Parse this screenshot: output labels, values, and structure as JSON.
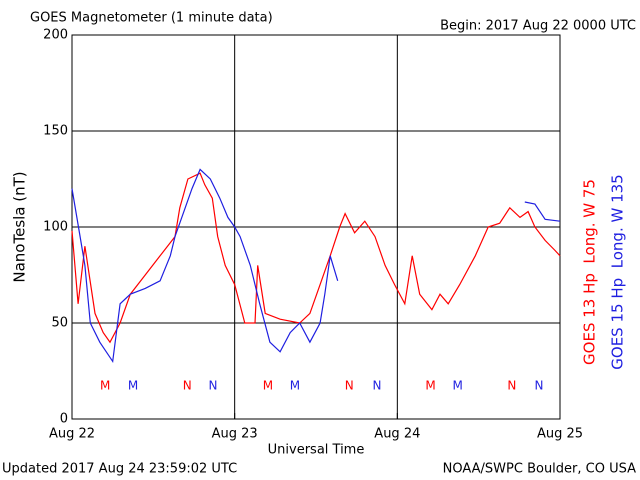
{
  "chart_data": {
    "type": "line",
    "title": "GOES Magnetometer (1 minute data)",
    "subtitle": "Begin:  2017 Aug 22 0000 UTC",
    "y_label": "NanoTesla (nT)",
    "x_label": "Universal Time",
    "footer_left": "Updated 2017 Aug 24 23:59:02 UTC",
    "footer_right": "NOAA/SWPC Boulder, CO USA",
    "xlim": [
      0,
      72
    ],
    "xticks": [
      {
        "value": 0,
        "label": "Aug 22"
      },
      {
        "value": 24,
        "label": "Aug 23"
      },
      {
        "value": 48,
        "label": "Aug 24"
      },
      {
        "value": 72,
        "label": "Aug 25"
      }
    ],
    "ylim": [
      0,
      200
    ],
    "yticks": [
      0,
      50,
      100,
      150,
      200
    ],
    "grid": true,
    "series": [
      {
        "name": "GOES 13 Hp  Long. W 75",
        "color": "#ff0000",
        "x": [
          0,
          0.9,
          1.9,
          3.4,
          4.6,
          5.6,
          7.1,
          8.6,
          10.8,
          13.0,
          15.2,
          15.9,
          17.1,
          18.9,
          19.6,
          20.7,
          21.5,
          22.6,
          24.0,
          25.5,
          27.0,
          27.4,
          28.5,
          30.7,
          33.6,
          35.1,
          36.6,
          38.1,
          39.5,
          40.3,
          41.7,
          43.2,
          44.7,
          46.2,
          47.6,
          49.1,
          50.2,
          51.3,
          53.1,
          54.3,
          55.5,
          57.2,
          59.5,
          61.4,
          63.1,
          64.6,
          66.1,
          67.3,
          68.3,
          69.8,
          71.2,
          72
        ],
        "values": [
          98,
          60,
          90,
          55,
          45,
          40,
          50,
          65,
          75,
          85,
          95,
          110,
          125,
          128,
          122,
          115,
          95,
          80,
          70,
          50,
          50,
          80,
          55,
          52,
          50,
          55,
          70,
          85,
          100,
          107,
          97,
          103,
          95,
          80,
          70,
          60,
          85,
          65,
          57,
          65,
          60,
          70,
          85,
          100,
          102,
          110,
          105,
          108,
          100,
          93,
          88,
          85
        ]
      },
      {
        "name": "GOES 15 Hp  Long. W 135",
        "color": "#1f1fe0",
        "x": [
          0,
          1.2,
          1.9,
          2.7,
          4.1,
          6.0,
          7.1,
          8.6,
          10.8,
          13.0,
          14.5,
          15.2,
          16.7,
          17.7,
          18.9,
          20.4,
          21.8,
          23.0,
          24.0,
          24.8,
          26.3,
          27.7,
          29.2,
          30.7,
          32.2,
          33.6,
          35.1,
          36.6,
          37.3,
          38.1,
          39.2,
          50,
          66.8,
          68.3,
          69.8,
          72
        ],
        "values": [
          120,
          95,
          80,
          50,
          40,
          30,
          60,
          65,
          68,
          72,
          85,
          95,
          110,
          120,
          130,
          125,
          115,
          105,
          100,
          95,
          80,
          60,
          40,
          35,
          45,
          50,
          40,
          50,
          65,
          85,
          72,
          null,
          113,
          112,
          104,
          103
        ]
      }
    ],
    "markers": [
      {
        "x": 4.9,
        "label": "M",
        "color": "#ff0000"
      },
      {
        "x": 9.0,
        "label": "M",
        "color": "#1f1fe0"
      },
      {
        "x": 17.0,
        "label": "N",
        "color": "#ff0000"
      },
      {
        "x": 20.8,
        "label": "N",
        "color": "#1f1fe0"
      },
      {
        "x": 28.9,
        "label": "M",
        "color": "#ff0000"
      },
      {
        "x": 32.9,
        "label": "M",
        "color": "#1f1fe0"
      },
      {
        "x": 40.9,
        "label": "N",
        "color": "#ff0000"
      },
      {
        "x": 45.0,
        "label": "N",
        "color": "#1f1fe0"
      },
      {
        "x": 52.9,
        "label": "M",
        "color": "#ff0000"
      },
      {
        "x": 56.9,
        "label": "M",
        "color": "#1f1fe0"
      },
      {
        "x": 64.9,
        "label": "N",
        "color": "#ff0000"
      },
      {
        "x": 68.9,
        "label": "N",
        "color": "#1f1fe0"
      }
    ]
  }
}
